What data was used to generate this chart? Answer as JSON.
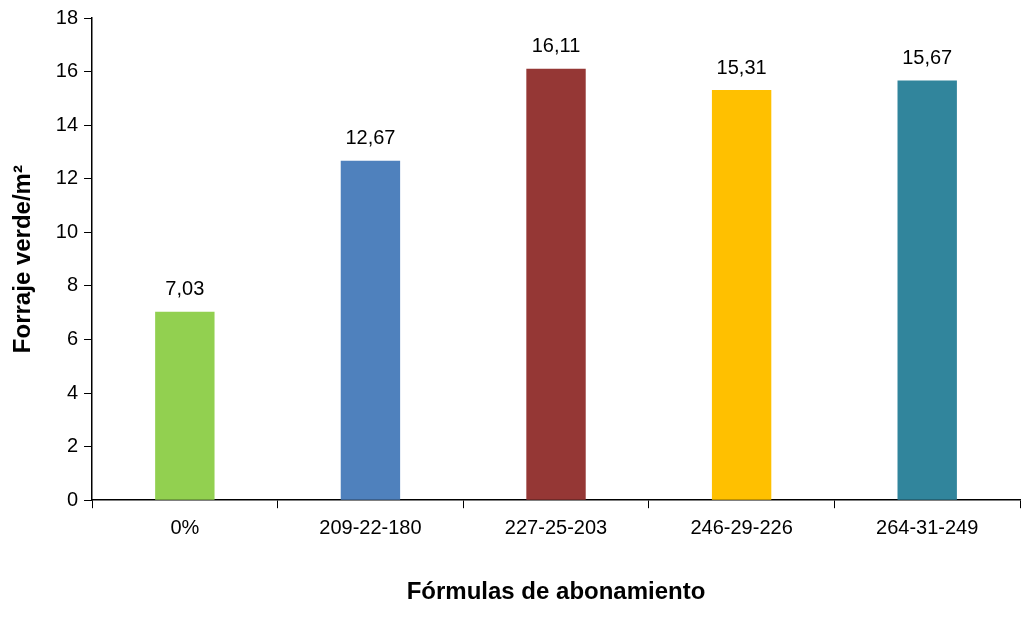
{
  "chart_data": {
    "type": "bar",
    "xlabel": "Fórmulas de abonamiento",
    "ylabel": "Forraje verde/m²",
    "categories": [
      "0%",
      "209-22-180",
      "227-25-203",
      "246-29-226",
      "264-31-249"
    ],
    "values": [
      7.03,
      12.67,
      16.11,
      15.31,
      15.67
    ],
    "colors": [
      "#92d050",
      "#4f81bd",
      "#953735",
      "#ffc000",
      "#31859c"
    ],
    "value_labels": [
      "7,03",
      "12,67",
      "16,11",
      "15,31",
      "15,67"
    ],
    "ylim": [
      0,
      18
    ],
    "yticks": [
      0,
      2,
      4,
      6,
      8,
      10,
      12,
      14,
      16,
      18
    ],
    "grid": false,
    "legend": false
  }
}
